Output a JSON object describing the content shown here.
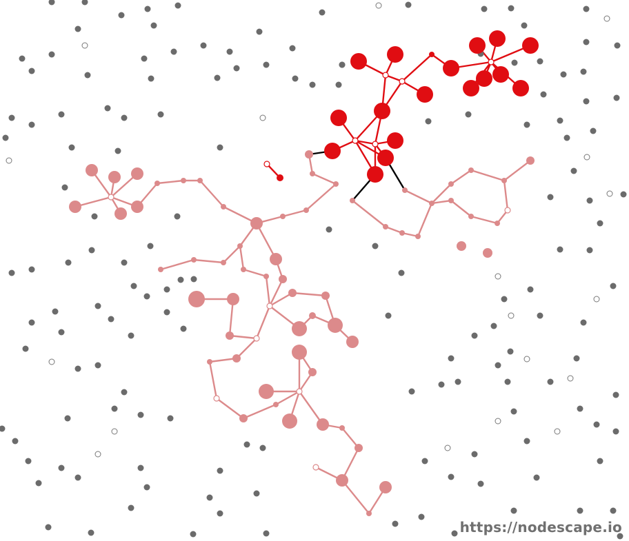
{
  "watermark": "https://nodescape.io",
  "colors": {
    "background": "#ffffff",
    "neutral_node": "#6b6b6b",
    "open_node_stroke": "#777777",
    "red_team": "#e00d12",
    "red_team_stroke": "#e00d12",
    "pink_team": "#dc8a8b",
    "contested_edge": "#000000",
    "hub_fill": "#ffffff"
  }
}
